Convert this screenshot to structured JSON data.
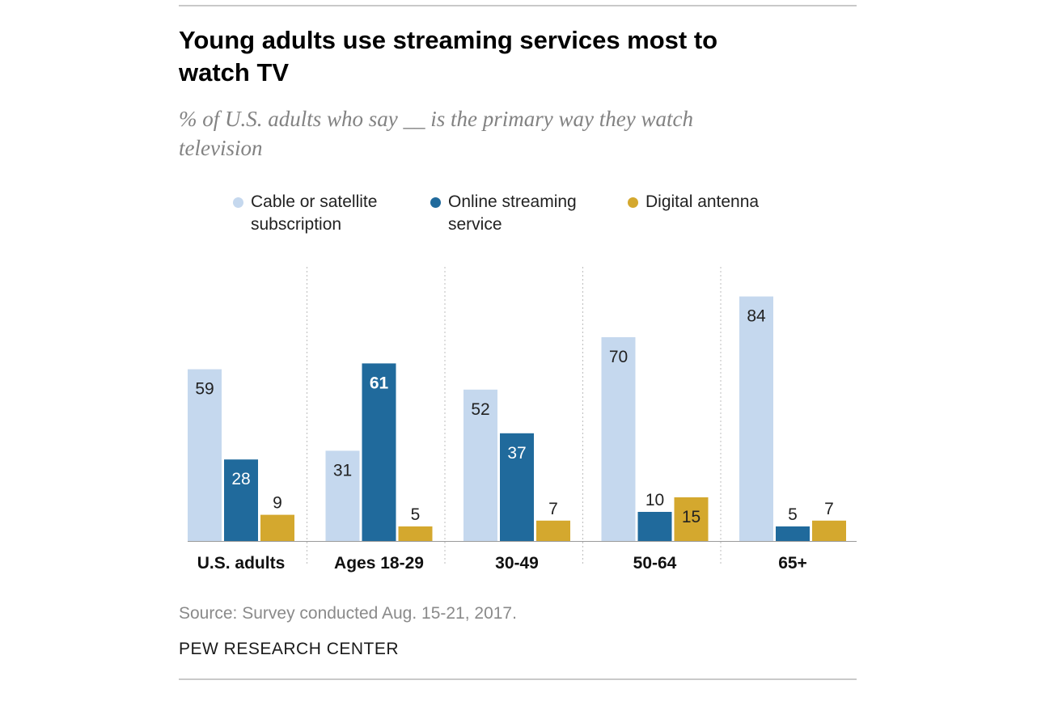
{
  "title": "Young adults use streaming services most to watch TV",
  "subtitle": "% of U.S. adults who say __ is the primary way they watch television",
  "legend": [
    {
      "label": "Cable or satellite subscription",
      "color": "#c5d8ee"
    },
    {
      "label": "Online streaming service",
      "color": "#206a9c"
    },
    {
      "label": "Digital antenna",
      "color": "#d4a82e"
    }
  ],
  "source": "Source: Survey conducted Aug. 15-21, 2017.",
  "organization": "PEW RESEARCH CENTER",
  "chart_data": {
    "type": "bar",
    "categories": [
      "U.S. adults",
      "Ages 18-29",
      "30-49",
      "50-64",
      "65+"
    ],
    "series": [
      {
        "name": "Cable or satellite subscription",
        "values": [
          59,
          31,
          52,
          70,
          84
        ],
        "color": "#c5d8ee"
      },
      {
        "name": "Online streaming service",
        "values": [
          28,
          61,
          37,
          10,
          5
        ],
        "color": "#206a9c"
      },
      {
        "name": "Digital antenna",
        "values": [
          9,
          5,
          7,
          15,
          7
        ],
        "color": "#d4a82e"
      }
    ],
    "ylim": [
      0,
      94
    ],
    "xlabel": "",
    "ylabel": "",
    "grid": false,
    "legend_position": "top",
    "value_labels": true,
    "bold_value": {
      "series": 1,
      "category": 1
    }
  }
}
